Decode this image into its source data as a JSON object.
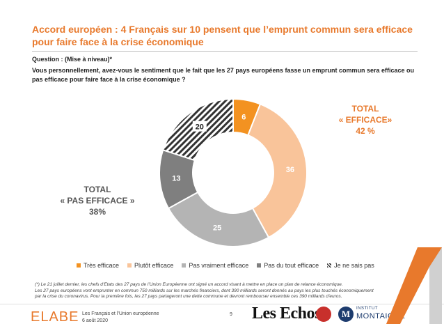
{
  "title": "Accord européen : 4 Français sur 10 pensent que l’emprunt commun sera efficace pour faire face à la crise économique",
  "question_label": "Question : (Mise à niveau)*",
  "question_text": "Vous personnellement, avez-vous le sentiment que le fait que les 27 pays européens fasse un emprunt commun sera efficace ou pas efficace pour faire face à la crise économique ?",
  "total_efficace": {
    "line1": "TOTAL",
    "line2": "« EFFICACE»",
    "value": "42 %"
  },
  "total_pas_efficace": {
    "line1": "TOTAL",
    "line2": "« PAS EFFICACE »",
    "value": "38%"
  },
  "footnote": [
    "(*) Le 21 juillet dernier, les chefs d’Etats des 27 pays de l’Union Européenne ont signé un accord visant à mettre en place un plan de relance économique.",
    "Les 27 pays européens vont emprunter en commun 750 milliards sur les marchés financiers, dont 390 milliards seront donnés au pays les plus touchés économiquement",
    "par la crise du coronavirus. Pour la première fois, les 27 pays partageront une dette commune et devront rembourser ensemble ces 390 milliards d’euros."
  ],
  "footer": {
    "brand": "ELABE",
    "subtitle": "Les Français et l’Union européenne",
    "date": "6 août 2020",
    "page": "9",
    "partner1": "Les Echos",
    "partner2_top": "INSTITUT",
    "partner2_bottom": "MONTAIGNE",
    "partner2_initial": "M"
  },
  "colors": {
    "title": "#e8792c",
    "accent": "#e8792c",
    "total_efficace": "#e8792c",
    "total_pas_efficace": "#555555",
    "label_dark": "#222222"
  },
  "chart_data": {
    "type": "pie",
    "donut": true,
    "categories": [
      "Très efficace",
      "Plutôt efficace",
      "Pas vraiment efficace",
      "Pas du tout efficace",
      "Je ne sais pas"
    ],
    "values": [
      6,
      36,
      25,
      13,
      20
    ],
    "colors": [
      "#f39221",
      "#f9c49a",
      "#b4b4b4",
      "#7f7f7f",
      "hatch"
    ],
    "legend_position": "bottom"
  }
}
